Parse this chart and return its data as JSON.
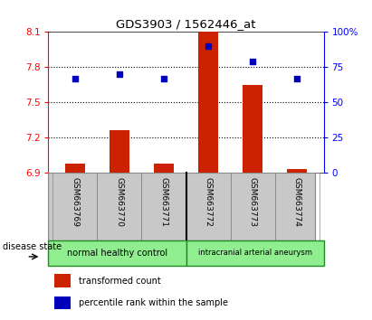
{
  "title": "GDS3903 / 1562446_at",
  "samples": [
    "GSM663769",
    "GSM663770",
    "GSM663771",
    "GSM663772",
    "GSM663773",
    "GSM663774"
  ],
  "bar_values": [
    6.98,
    7.26,
    6.98,
    8.1,
    7.65,
    6.93
  ],
  "dot_values_pct": [
    67,
    70,
    67,
    90,
    79,
    67
  ],
  "bar_bottom": 6.9,
  "left_ylim": [
    6.9,
    8.1
  ],
  "left_yticks": [
    6.9,
    7.2,
    7.5,
    7.8,
    8.1
  ],
  "right_ylim": [
    0,
    100
  ],
  "right_yticks": [
    0,
    25,
    50,
    75,
    100
  ],
  "right_yticklabels": [
    "0",
    "25",
    "50",
    "75",
    "100%"
  ],
  "bar_color": "#cc2200",
  "dot_color": "#0000bb",
  "group_labels": [
    "normal healthy control",
    "intracranial arterial aneurysm"
  ],
  "group_color": "#90ee90",
  "group_border_color": "#228B22",
  "tick_area_bg": "#c8c8c8",
  "tick_area_border": "#888888",
  "disease_state_label": "disease state",
  "legend_bar_label": "transformed count",
  "legend_dot_label": "percentile rank within the sample",
  "plot_bg": "white"
}
